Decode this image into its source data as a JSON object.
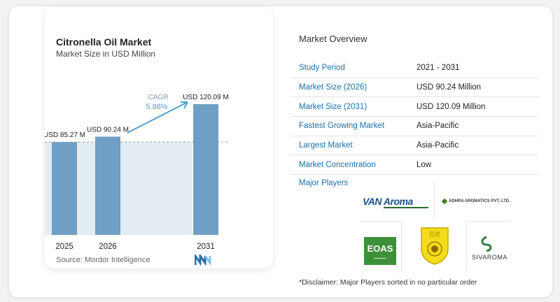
{
  "chart_data": {
    "type": "bar",
    "title": "Citronella Oil Market",
    "subtitle": "Market Size in USD Million",
    "categories": [
      "2025",
      "2026",
      "2031"
    ],
    "values": [
      85.27,
      90.24,
      120.09
    ],
    "value_labels": [
      "USD 85.27 M",
      "USD 90.24 M",
      "USD 120.09 M"
    ],
    "cagr_label": "CAGR",
    "cagr_value": "5.88%",
    "colors": {
      "bar": "#6f9fc4",
      "shade": "#e3ecf3",
      "arrow": "#4f9fd0",
      "dashed": "#9a9a9a"
    }
  },
  "source": "Source:  Mordor Intelligence",
  "overview": {
    "title": "Market Overview",
    "rows": [
      {
        "key": "Study Period",
        "value": "2021 - 2031"
      },
      {
        "key": "Market Size (2026)",
        "value": "USD 90.24 Million"
      },
      {
        "key": "Market Size (2031)",
        "value": "USD 120.09 Million"
      },
      {
        "key": "Fastest Growing Market",
        "value": "Asia-Pacific"
      },
      {
        "key": "Largest Market",
        "value": "Asia-Pacific"
      },
      {
        "key": "Market Concentration",
        "value": "Low"
      }
    ]
  },
  "players": {
    "title": "Major Players",
    "logos": [
      "VAN Aroma",
      "ADHRA AROMATICS PVT. LTD.",
      "EOAS",
      "SIVAROMA"
    ],
    "disclaimer": "*Disclaimer: Major Players sorted in no particular order"
  }
}
